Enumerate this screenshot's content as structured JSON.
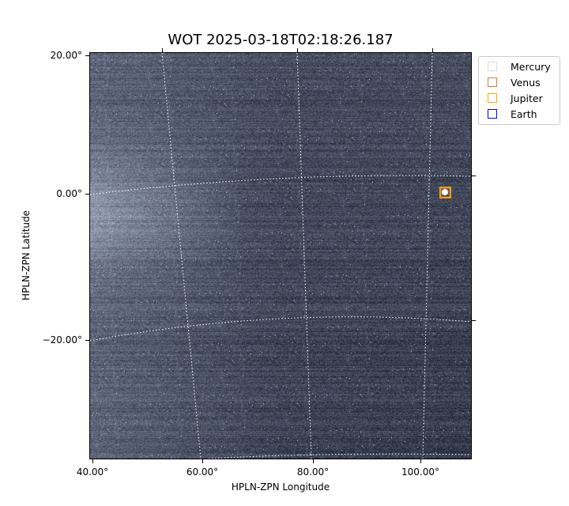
{
  "title": "WOT 2025-03-18T02:18:26.187",
  "x_axis": {
    "label": "HPLN-ZPN Longitude",
    "ticks": [
      "40.00°",
      "60.00°",
      "80.00°",
      "100.00°"
    ]
  },
  "y_axis": {
    "label": "HPLN-ZPN Latitude",
    "ticks": [
      "20.00°",
      "0.00°",
      "−20.00°"
    ]
  },
  "legend": [
    {
      "label": "Mercury",
      "color": "#dddddd"
    },
    {
      "label": "Venus",
      "color": "#d2803a"
    },
    {
      "label": "Jupiter",
      "color": "#ffa500"
    },
    {
      "label": "Earth",
      "color": "#0000ff"
    }
  ],
  "colormap": "bone",
  "grid": "dotted white"
}
